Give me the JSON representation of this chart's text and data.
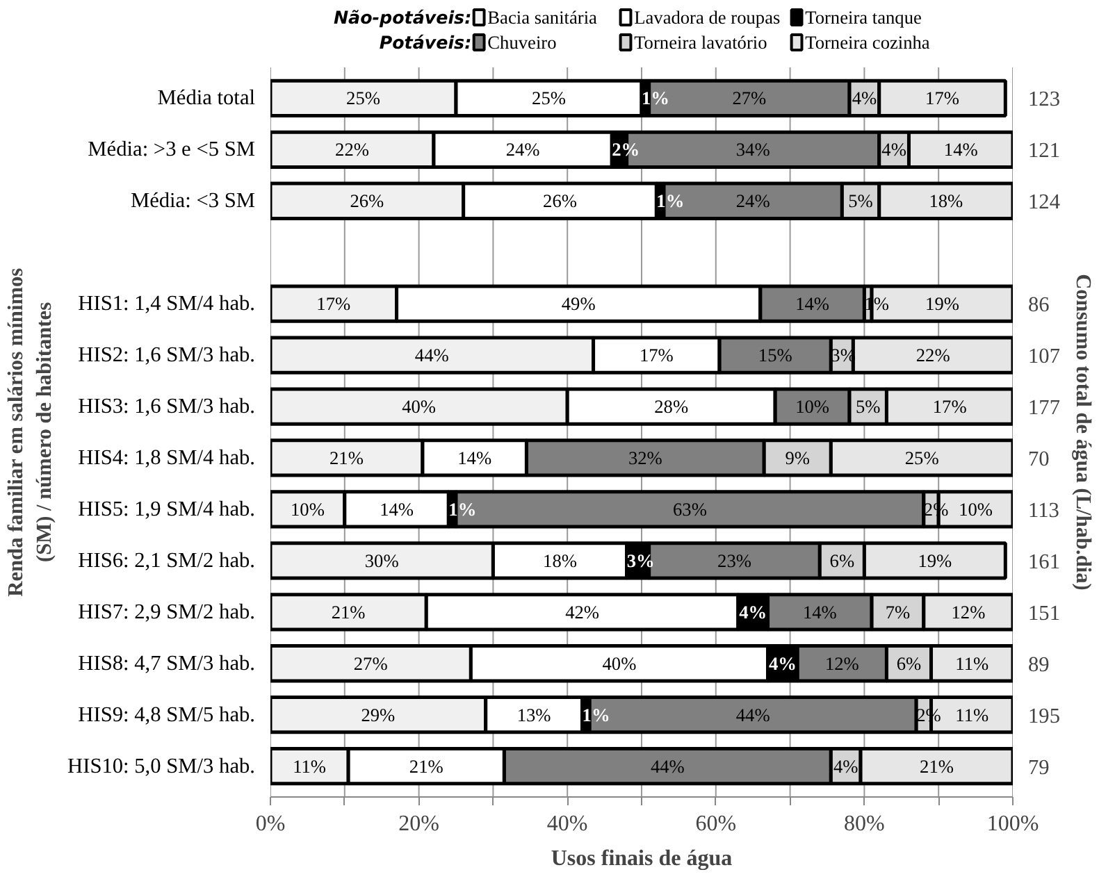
{
  "chart_data": {
    "type": "bar",
    "orientation": "horizontal",
    "stacked": true,
    "categories": [
      "Média total",
      "Média: >3 e <5 SM",
      "Média: <3 SM",
      null,
      "HIS1: 1,4 SM/4 hab.",
      "HIS2: 1,6 SM/3 hab.",
      "HIS3: 1,6 SM/3 hab.",
      "HIS4: 1,8 SM/4 hab.",
      "HIS5: 1,9 SM/4 hab.",
      "HIS6: 2,1 SM/2 hab.",
      "HIS7: 2,9 SM/2 hab.",
      "HIS8: 4,7 SM/3 hab.",
      "HIS9: 4,8 SM/5 hab.",
      "HIS10: 5,0 SM/3 hab."
    ],
    "y2_categories": [
      "123",
      "121",
      "124",
      null,
      "86",
      "107",
      "177",
      "70",
      "113",
      "161",
      "151",
      "89",
      "195",
      "79"
    ],
    "series": [
      {
        "name": "Bacia sanitária",
        "color": "#f0f0f0",
        "values": [
          25,
          22,
          26,
          null,
          17,
          43.5,
          40,
          20.5,
          10,
          30,
          21,
          27,
          29,
          10.5
        ],
        "value_labels": [
          "25%",
          "22%",
          "26%",
          null,
          "17%",
          "44%",
          "40%",
          "21%",
          "10%",
          "30%",
          "21%",
          "27%",
          "29%",
          "11%"
        ]
      },
      {
        "name": "Lavadora de roupas",
        "color": "#ffffff",
        "values": [
          25,
          24,
          26,
          null,
          49,
          17,
          28,
          14,
          14,
          18,
          42,
          40,
          13,
          21
        ],
        "value_labels": [
          "25%",
          "24%",
          "26%",
          null,
          "49%",
          "17%",
          "28%",
          "14%",
          "14%",
          "18%",
          "42%",
          "40%",
          "13%",
          "21%"
        ]
      },
      {
        "name": "Torneira tanque",
        "color": "#000000",
        "values": [
          1,
          2,
          1,
          null,
          0,
          0,
          0,
          0,
          1,
          3,
          4,
          4,
          1,
          0
        ],
        "value_labels": [
          "1%",
          "2%",
          "1%",
          null,
          null,
          null,
          null,
          null,
          "1%",
          "3%",
          "4%",
          "4%",
          "1%",
          null
        ]
      },
      {
        "name": "Chuveiro",
        "color": "#808080",
        "values": [
          27,
          34,
          24,
          null,
          14,
          15,
          10,
          32,
          63,
          23,
          14,
          12,
          44,
          44
        ],
        "value_labels": [
          "27%",
          "34%",
          "24%",
          null,
          "14%",
          "15%",
          "10%",
          "32%",
          "63%",
          "23%",
          "14%",
          "12%",
          "44%",
          "44%"
        ]
      },
      {
        "name": "Torneira lavatório",
        "color": "#d4d4d4",
        "values": [
          4,
          4,
          5,
          null,
          1,
          3,
          5,
          9,
          2,
          6,
          7,
          6,
          2,
          4
        ],
        "value_labels": [
          "4%",
          "4%",
          "5%",
          null,
          "1%",
          "3%",
          "5%",
          "9%",
          "2%",
          "6%",
          "7%",
          "6%",
          "2%",
          "4%"
        ]
      },
      {
        "name": "Torneira cozinha",
        "color": "#e6e6e6",
        "values": [
          17,
          14,
          18,
          null,
          19,
          21.5,
          17,
          24.5,
          10,
          19,
          12,
          11,
          11,
          20.5
        ],
        "value_labels": [
          "17%",
          "14%",
          "18%",
          null,
          "19%",
          "22%",
          "17%",
          "25%",
          "10%",
          "19%",
          "12%",
          "11%",
          "11%",
          "21%"
        ]
      }
    ],
    "xlim": [
      0,
      100
    ],
    "xticks": [
      {
        "value": 0,
        "label": "0%"
      },
      {
        "value": 10,
        "label": null
      },
      {
        "value": 20,
        "label": "20%"
      },
      {
        "value": 30,
        "label": null
      },
      {
        "value": 40,
        "label": "40%"
      },
      {
        "value": 50,
        "label": null
      },
      {
        "value": 60,
        "label": "60%"
      },
      {
        "value": 70,
        "label": null
      },
      {
        "value": 80,
        "label": "80%"
      },
      {
        "value": 90,
        "label": null
      },
      {
        "value": 100,
        "label": "100%"
      }
    ],
    "xlabel": "Usos finais de água",
    "ylabel": "Renda familiar em salários mínimos (SM) / número de habitantes",
    "y2label": "Consumo total de água (L/hab.dia)",
    "annotations": [
      "Não-potáveis:",
      "Potáveis:"
    ],
    "grid": "x",
    "legend": "top"
  }
}
